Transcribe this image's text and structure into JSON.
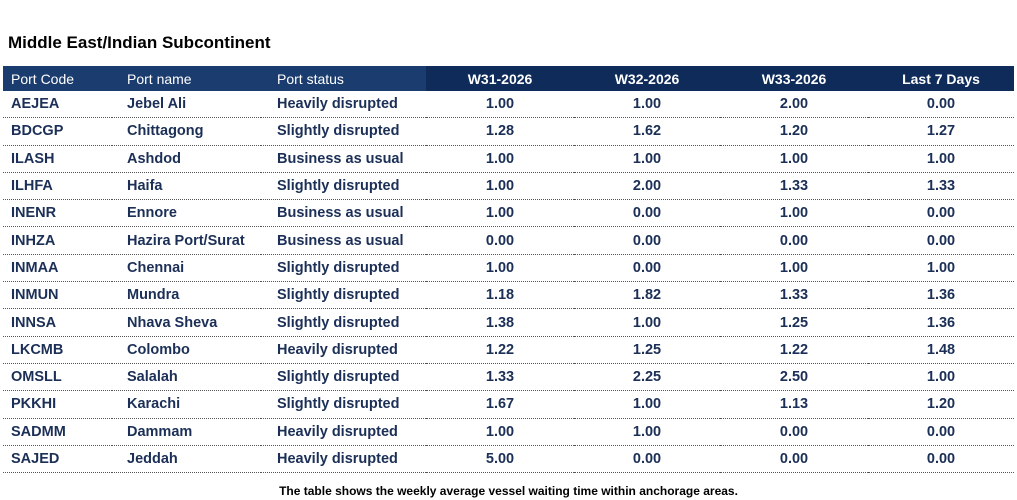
{
  "title": "Middle East/Indian Subcontinent",
  "table": {
    "headers": {
      "port_code": "Port Code",
      "port_name": "Port name",
      "port_status": "Port status",
      "w31": "W31-2026",
      "w32": "W32-2026",
      "w33": "W33-2026",
      "last7": "Last 7 Days"
    },
    "rows": [
      {
        "code": "AEJEA",
        "name": "Jebel Ali",
        "status": "Heavily disrupted",
        "w31": "1.00",
        "w32": "1.00",
        "w33": "2.00",
        "last7": "0.00"
      },
      {
        "code": "BDCGP",
        "name": "Chittagong",
        "status": "Slightly disrupted",
        "w31": "1.28",
        "w32": "1.62",
        "w33": "1.20",
        "last7": "1.27"
      },
      {
        "code": "ILASH",
        "name": "Ashdod",
        "status": "Business as usual",
        "w31": "1.00",
        "w32": "1.00",
        "w33": "1.00",
        "last7": "1.00"
      },
      {
        "code": "ILHFA",
        "name": "Haifa",
        "status": "Slightly disrupted",
        "w31": "1.00",
        "w32": "2.00",
        "w33": "1.33",
        "last7": "1.33"
      },
      {
        "code": "INENR",
        "name": "Ennore",
        "status": "Business as usual",
        "w31": "1.00",
        "w32": "0.00",
        "w33": "1.00",
        "last7": "0.00"
      },
      {
        "code": "INHZA",
        "name": "Hazira Port/Surat",
        "status": "Business as usual",
        "w31": "0.00",
        "w32": "0.00",
        "w33": "0.00",
        "last7": "0.00"
      },
      {
        "code": "INMAA",
        "name": "Chennai",
        "status": "Slightly disrupted",
        "w31": "1.00",
        "w32": "0.00",
        "w33": "1.00",
        "last7": "1.00"
      },
      {
        "code": "INMUN",
        "name": "Mundra",
        "status": "Slightly disrupted",
        "w31": "1.18",
        "w32": "1.82",
        "w33": "1.33",
        "last7": "1.36"
      },
      {
        "code": "INNSA",
        "name": "Nhava Sheva",
        "status": "Slightly disrupted",
        "w31": "1.38",
        "w32": "1.00",
        "w33": "1.25",
        "last7": "1.36"
      },
      {
        "code": "LKCMB",
        "name": "Colombo",
        "status": "Heavily disrupted",
        "w31": "1.22",
        "w32": "1.25",
        "w33": "1.22",
        "last7": "1.48"
      },
      {
        "code": "OMSLL",
        "name": "Salalah",
        "status": "Slightly disrupted",
        "w31": "1.33",
        "w32": "2.25",
        "w33": "2.50",
        "last7": "1.00"
      },
      {
        "code": "PKKHI",
        "name": "Karachi",
        "status": "Slightly disrupted",
        "w31": "1.67",
        "w32": "1.00",
        "w33": "1.13",
        "last7": "1.20"
      },
      {
        "code": "SADMM",
        "name": "Dammam",
        "status": "Heavily disrupted",
        "w31": "1.00",
        "w32": "1.00",
        "w33": "0.00",
        "last7": "0.00"
      },
      {
        "code": "SAJED",
        "name": "Jeddah",
        "status": "Heavily disrupted",
        "w31": "5.00",
        "w32": "0.00",
        "w33": "0.00",
        "last7": "0.00"
      }
    ]
  },
  "caption": "The table shows the weekly average vessel waiting time within anchorage areas.",
  "colors": {
    "header_left": "#1b3c6f",
    "header_right": "#0f2b5a",
    "body_text": "#1b2f57"
  }
}
